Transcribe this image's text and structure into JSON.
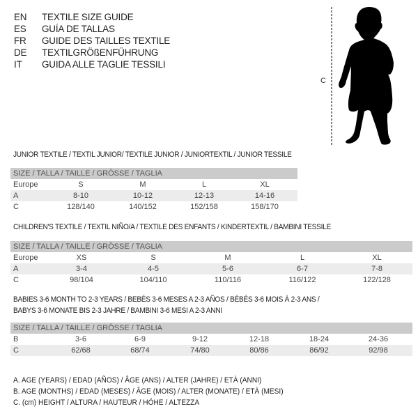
{
  "languages": [
    {
      "code": "EN",
      "title": "TEXTILE SIZE GUIDE"
    },
    {
      "code": "ES",
      "title": "GUÍA DE TALLAS"
    },
    {
      "code": "FR",
      "title": "GUIDE DES TAILLES TEXTILE"
    },
    {
      "code": "DE",
      "title": "TEXTILGRÖßENFÜHRUNG"
    },
    {
      "code": "IT",
      "title": "GUIDA ALLE TAGLIE TESSILI"
    }
  ],
  "figure": {
    "measure_label": "C"
  },
  "size_header": "SIZE / TALLA / TAILLE / GRÖSSE / TAGLIA",
  "junior": {
    "heading": "JUNIOR TEXTILE / TEXTIL JUNIOR/ TEXTILE JUNIOR / JUNIORTEXTIL / JUNIOR TESSILE",
    "rows": [
      {
        "label": "Europe",
        "values": [
          "S",
          "M",
          "L",
          "XL"
        ]
      },
      {
        "label": "A",
        "values": [
          "8-10",
          "10-12",
          "12-13",
          "14-16"
        ]
      },
      {
        "label": "C",
        "values": [
          "128/140",
          "140/152",
          "152/158",
          "158/170"
        ]
      }
    ]
  },
  "children": {
    "heading": "CHILDREN'S TEXTILE / TEXTIL NIÑO/A / TEXTILE DES ENFANTS / KINDERTEXTIL / BAMBINI TESSILE",
    "rows": [
      {
        "label": "Europe",
        "values": [
          "XS",
          "S",
          "M",
          "L",
          "XL"
        ]
      },
      {
        "label": "A",
        "values": [
          "3-4",
          "4-5",
          "5-6",
          "6-7",
          "7-8"
        ]
      },
      {
        "label": "C",
        "values": [
          "98/104",
          "104/110",
          "110/116",
          "116/122",
          "122/128"
        ]
      }
    ]
  },
  "babies": {
    "heading_line1": "BABIES 3-6 MONTH TO 2-3 YEARS / BEBÉS 3-6 MESES A 2-3 AÑOS / BÉBÉS 3-6 MOIS À 2-3 ANS /",
    "heading_line2": "BABYS 3-6 MONATE BIS 2-3 JAHRE / BAMBINI 3-6 MESI A 2-3 ANNI",
    "rows": [
      {
        "label": "B",
        "values": [
          "3-6",
          "6-9",
          "9-12",
          "12-18",
          "18-24",
          "24-36"
        ]
      },
      {
        "label": "C",
        "values": [
          "62/68",
          "68/74",
          "74/80",
          "80/86",
          "86/92",
          "92/98"
        ]
      }
    ]
  },
  "legend": [
    "A. AGE (YEARS) / EDAD (AÑOS) / ÂGE (ANS) / ALTER (JAHRE) / ETÀ (ANNI)",
    "B. AGE (MONTHS) / EDAD (MESES) / ÂGE (MOIS) / ALTER (MONATE) / ETÀ (MESI)",
    "C. (cm) HEIGHT / ALTURA / HAUTEUR / HÖHE / ALTEZZA"
  ]
}
